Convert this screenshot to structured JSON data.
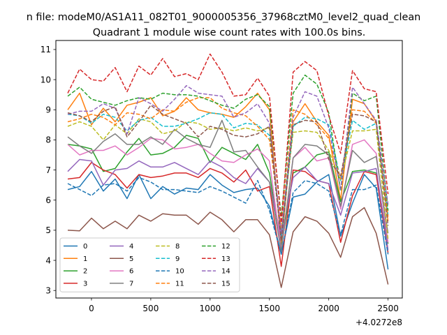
{
  "chart_data": {
    "type": "line",
    "suptitle": "n file: modeM0/AS1A11_082T01_9000005356_37968cztM0_level2_quad_clean",
    "title": "Quadrant 1 module wise count rates with 100.0s bins.",
    "xlabel": "",
    "ylabel": "",
    "x_offset_label": "+4.0272e8",
    "xlim": [
      -300,
      2620
    ],
    "ylim": [
      2.75,
      11.3
    ],
    "xticks": [
      0,
      500,
      1000,
      1500,
      2000,
      2500
    ],
    "yticks": [
      3,
      4,
      5,
      6,
      7,
      8,
      9,
      10,
      11
    ],
    "legend": {
      "location": "lower-left",
      "columns": 4
    },
    "x": [
      -200,
      -100,
      0,
      100,
      200,
      300,
      400,
      500,
      600,
      700,
      800,
      900,
      1000,
      1100,
      1200,
      1300,
      1400,
      1500,
      1600,
      1700,
      1800,
      1900,
      2000,
      2100,
      2200,
      2300,
      2400,
      2500
    ],
    "series": [
      {
        "name": "0",
        "color": "#1f77b4",
        "dash": "solid",
        "values": [
          6.35,
          6.45,
          6.95,
          6.3,
          6.7,
          6.05,
          6.85,
          6.05,
          6.45,
          6.2,
          6.4,
          6.35,
          6.85,
          6.5,
          6.25,
          6.35,
          6.4,
          5.8,
          4.2,
          6.1,
          6.2,
          6.6,
          6.85,
          4.8,
          5.9,
          6.85,
          6.4,
          3.7
        ]
      },
      {
        "name": "1",
        "color": "#ff7f0e",
        "dash": "solid",
        "values": [
          9.0,
          9.55,
          8.5,
          9.05,
          8.6,
          9.15,
          9.25,
          9.4,
          8.8,
          8.95,
          9.4,
          9.0,
          8.9,
          8.85,
          8.75,
          9.1,
          9.55,
          9.0,
          4.5,
          8.6,
          9.2,
          8.6,
          8.15,
          6.0,
          9.35,
          9.2,
          8.6,
          5.3
        ]
      },
      {
        "name": "2",
        "color": "#2ca02c",
        "dash": "solid",
        "values": [
          7.85,
          7.8,
          7.7,
          6.95,
          7.05,
          7.6,
          8.05,
          7.5,
          7.55,
          7.75,
          8.15,
          8.05,
          7.25,
          7.75,
          7.55,
          7.35,
          7.85,
          6.9,
          4.45,
          6.9,
          7.1,
          7.5,
          7.6,
          5.95,
          6.95,
          7.0,
          6.9,
          4.55
        ]
      },
      {
        "name": "3",
        "color": "#d62728",
        "dash": "solid",
        "values": [
          6.7,
          6.75,
          7.25,
          7.0,
          6.85,
          6.4,
          6.85,
          6.75,
          6.8,
          6.9,
          6.9,
          6.75,
          7.05,
          6.9,
          6.6,
          7.0,
          6.3,
          6.45,
          3.8,
          7.0,
          6.95,
          6.65,
          6.55,
          4.6,
          6.15,
          6.95,
          6.85,
          4.25
        ]
      },
      {
        "name": "4",
        "color": "#9467bd",
        "dash": "solid",
        "values": [
          6.95,
          7.35,
          7.3,
          6.5,
          7.0,
          7.05,
          7.3,
          7.1,
          7.1,
          7.25,
          7.05,
          6.85,
          7.3,
          7.1,
          6.75,
          6.55,
          7.05,
          6.6,
          4.75,
          6.75,
          7.1,
          6.65,
          6.55,
          5.5,
          6.9,
          6.95,
          7.05,
          4.35
        ]
      },
      {
        "name": "5",
        "color": "#8c564b",
        "dash": "solid",
        "values": [
          5.0,
          4.98,
          5.4,
          5.05,
          5.3,
          5.05,
          5.5,
          5.3,
          5.55,
          5.5,
          5.5,
          5.2,
          5.6,
          5.35,
          4.95,
          5.35,
          5.35,
          4.85,
          3.1,
          4.95,
          5.45,
          5.3,
          4.9,
          4.1,
          5.45,
          5.75,
          4.9,
          3.2
        ]
      },
      {
        "name": "6",
        "color": "#e377c2",
        "dash": "solid",
        "values": [
          7.85,
          7.5,
          7.65,
          7.65,
          7.8,
          7.5,
          7.75,
          8.05,
          8.0,
          7.7,
          7.75,
          7.85,
          7.55,
          7.3,
          7.25,
          7.5,
          7.7,
          7.3,
          4.35,
          7.4,
          7.75,
          7.3,
          7.4,
          5.7,
          7.85,
          8.0,
          7.55,
          4.6
        ]
      },
      {
        "name": "7",
        "color": "#7f7f7f",
        "dash": "solid",
        "values": [
          8.1,
          7.8,
          7.55,
          7.95,
          8.2,
          7.85,
          7.85,
          8.1,
          7.85,
          8.35,
          8.05,
          7.85,
          7.75,
          8.65,
          7.6,
          7.65,
          7.1,
          6.6,
          4.3,
          7.4,
          7.85,
          7.8,
          7.5,
          5.8,
          7.65,
          7.25,
          7.45,
          4.9
        ]
      },
      {
        "name": "8",
        "color": "#bcbd22",
        "dash": "dashed",
        "values": [
          8.45,
          8.6,
          8.45,
          8.0,
          8.5,
          8.2,
          8.7,
          8.6,
          8.2,
          8.3,
          8.6,
          8.55,
          8.35,
          8.4,
          8.3,
          8.4,
          8.3,
          8.4,
          4.9,
          8.25,
          8.3,
          8.25,
          7.65,
          6.65,
          8.3,
          8.3,
          8.35,
          4.7
        ]
      },
      {
        "name": "9",
        "color": "#17becf",
        "dash": "dashed",
        "values": [
          8.85,
          8.8,
          8.55,
          8.85,
          8.75,
          8.3,
          8.65,
          8.75,
          8.45,
          8.45,
          8.55,
          8.7,
          8.9,
          8.85,
          8.4,
          8.55,
          8.5,
          8.15,
          4.8,
          8.45,
          8.75,
          8.7,
          8.5,
          6.65,
          8.65,
          8.35,
          8.55,
          5.5
        ]
      },
      {
        "name": "10",
        "color": "#1f77b4",
        "dash": "dashed",
        "values": [
          6.55,
          6.35,
          6.15,
          6.5,
          6.55,
          6.3,
          6.75,
          6.6,
          6.35,
          6.35,
          6.3,
          6.25,
          6.45,
          6.3,
          6.1,
          5.9,
          6.65,
          5.65,
          4.2,
          6.25,
          6.65,
          6.55,
          6.3,
          4.85,
          6.35,
          6.35,
          6.5,
          4.2
        ]
      },
      {
        "name": "11",
        "color": "#ff7f0e",
        "dash": "dashed",
        "values": [
          8.6,
          8.7,
          8.85,
          8.75,
          8.5,
          8.9,
          8.85,
          8.7,
          9.0,
          8.95,
          9.25,
          9.4,
          9.4,
          9.05,
          8.9,
          8.8,
          8.45,
          8.0,
          5.05,
          9.0,
          8.85,
          8.5,
          8.05,
          6.7,
          9.0,
          8.95,
          8.55,
          5.45
        ]
      },
      {
        "name": "12",
        "color": "#2ca02c",
        "dash": "dashed",
        "values": [
          9.45,
          9.75,
          9.35,
          9.25,
          9.15,
          9.3,
          9.4,
          9.35,
          9.55,
          9.5,
          9.5,
          9.45,
          9.3,
          9.15,
          9.05,
          9.35,
          9.5,
          9.1,
          5.45,
          9.55,
          10.15,
          9.85,
          8.9,
          6.3,
          9.55,
          9.3,
          9.45,
          5.65
        ]
      },
      {
        "name": "13",
        "color": "#d62728",
        "dash": "dashed",
        "values": [
          9.55,
          10.35,
          10.0,
          9.95,
          10.4,
          9.6,
          10.45,
          10.15,
          10.7,
          10.1,
          10.2,
          10.0,
          10.85,
          10.25,
          9.45,
          9.5,
          10.05,
          9.45,
          5.25,
          10.25,
          10.6,
          10.3,
          8.8,
          7.55,
          10.3,
          9.7,
          9.6,
          6.2
        ]
      },
      {
        "name": "14",
        "color": "#9467bd",
        "dash": "dashed",
        "values": [
          8.85,
          8.95,
          8.95,
          9.2,
          9.05,
          8.2,
          9.4,
          9.2,
          8.95,
          9.35,
          9.8,
          9.55,
          9.5,
          9.45,
          8.75,
          8.9,
          9.2,
          8.55,
          4.9,
          8.75,
          9.6,
          9.45,
          8.4,
          6.35,
          9.75,
          9.2,
          8.65,
          5.85
        ]
      },
      {
        "name": "15",
        "color": "#8c564b",
        "dash": "dashed",
        "values": [
          8.9,
          8.8,
          8.6,
          8.95,
          9.1,
          8.1,
          8.6,
          9.15,
          8.85,
          8.7,
          8.55,
          8.1,
          8.45,
          8.35,
          8.15,
          8.1,
          8.2,
          8.45,
          4.65,
          8.5,
          8.65,
          8.6,
          7.35,
          6.8,
          8.85,
          8.8,
          8.6,
          5.15
        ]
      }
    ]
  }
}
